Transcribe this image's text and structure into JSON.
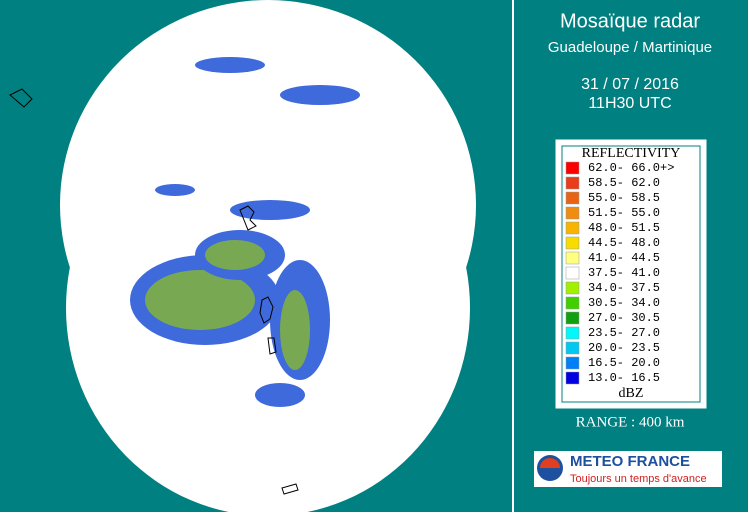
{
  "header": {
    "title": "Mosaïque radar",
    "subtitle": "Guadeloupe / Martinique",
    "date": "31 / 07 / 2016",
    "time": "11H30 UTC"
  },
  "legend": {
    "title": "REFLECTIVITY",
    "unit": "dBZ",
    "items": [
      {
        "label": "62.0- 66.0+>",
        "color": "#ff0000"
      },
      {
        "label": "58.5- 62.0",
        "color": "#e83c1c"
      },
      {
        "label": "55.0- 58.5",
        "color": "#e86414"
      },
      {
        "label": "51.5- 55.0",
        "color": "#f08c10"
      },
      {
        "label": "48.0- 51.5",
        "color": "#f8b400"
      },
      {
        "label": "44.5- 48.0",
        "color": "#f8dc00"
      },
      {
        "label": "41.0- 44.5",
        "color": "#ffff80"
      },
      {
        "label": "37.5- 41.0",
        "color": "#ffffff"
      },
      {
        "label": "34.0- 37.5",
        "color": "#a0f000"
      },
      {
        "label": "30.5- 34.0",
        "color": "#40d000"
      },
      {
        "label": "27.0- 30.5",
        "color": "#10a010"
      },
      {
        "label": "23.5- 27.0",
        "color": "#00f8f8"
      },
      {
        "label": "20.0- 23.5",
        "color": "#00c8f0"
      },
      {
        "label": "16.5- 20.0",
        "color": "#0080f8"
      },
      {
        "label": "13.0- 16.5",
        "color": "#0000e0"
      }
    ]
  },
  "range": "RANGE : 400 km",
  "logo": {
    "name": "METEO FRANCE",
    "slogan": "Toujours un temps d'avance"
  }
}
